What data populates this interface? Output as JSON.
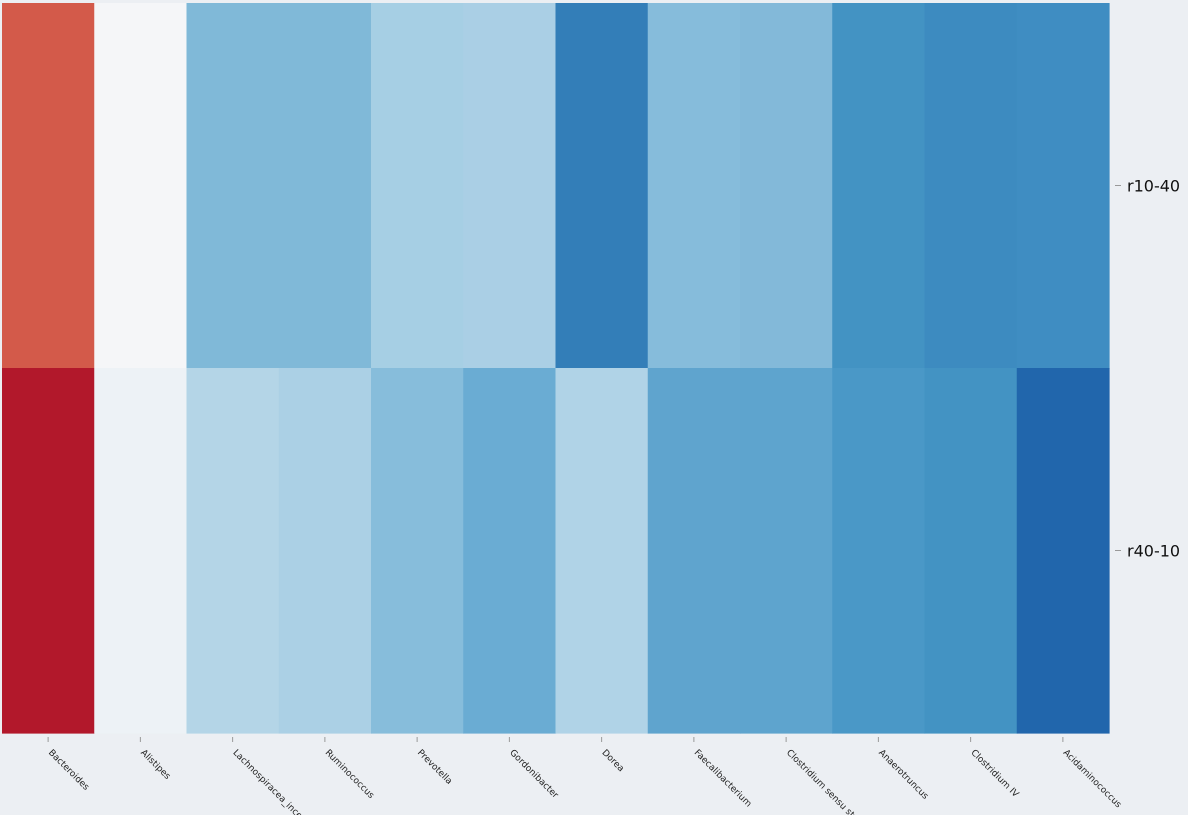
{
  "chart_data": {
    "type": "heatmap",
    "title": "",
    "xlabel": "",
    "ylabel": "",
    "colormap": "RdBu_r",
    "x_categories": [
      "Bacteroides",
      "Alistipes",
      "Lachnospiracea_incer",
      "Ruminococcus",
      "Prevotella",
      "Gordonibacter",
      "Dorea",
      "Faecalibacterium",
      "Clostridium sensu str",
      "Anaerotruncus",
      "Clostridium IV",
      "Acidaminococcus"
    ],
    "y_categories": [
      "r10-40",
      "r40-10"
    ],
    "cell_colors": [
      [
        "#d35a4a",
        "#f5f6f8",
        "#80b9d8",
        "#80b9d8",
        "#a6cfe4",
        "#aacfe5",
        "#337eb8",
        "#86bcdb",
        "#83b9d9",
        "#4393c3",
        "#3d8bc0",
        "#3f8dc2"
      ],
      [
        "#b2182b",
        "#edf2f6",
        "#b4d5e7",
        "#abd0e5",
        "#87bddb",
        "#6aacd3",
        "#b0d3e7",
        "#5fa4ce",
        "#5ea4ce",
        "#4a98c7",
        "#4393c3",
        "#2166ac"
      ]
    ],
    "grid": false,
    "legend": "none"
  }
}
